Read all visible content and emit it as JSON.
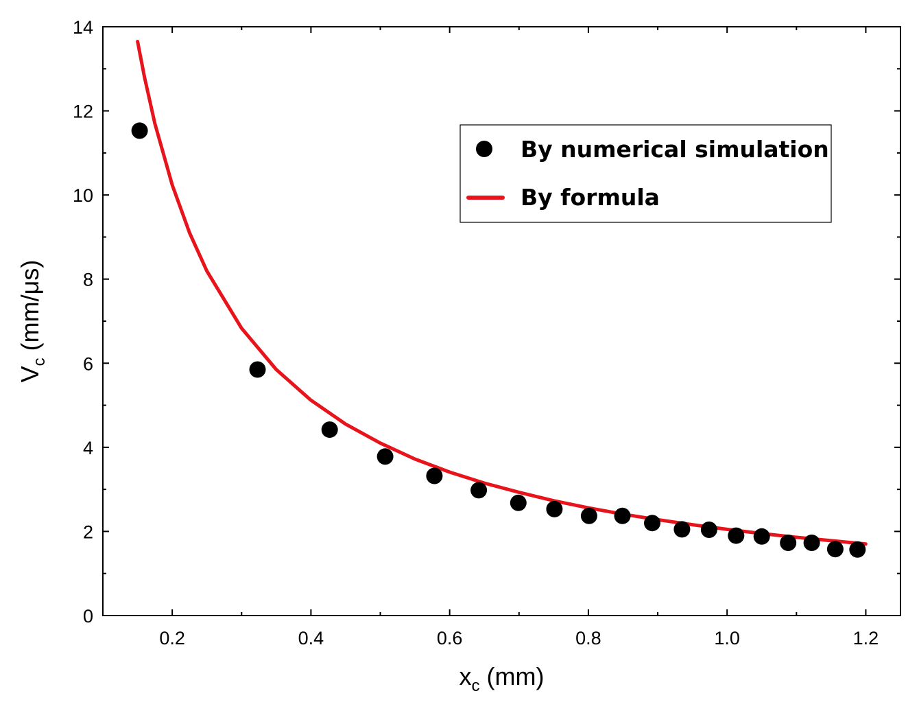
{
  "chart_data": {
    "type": "scatter",
    "xlabel": {
      "main": "x",
      "sub": "c",
      "unit": " (mm)"
    },
    "ylabel": {
      "main": "V",
      "sub": "c",
      "unit": " (mm/μs)"
    },
    "xlim": [
      0.1,
      1.25
    ],
    "ylim": [
      0,
      14
    ],
    "xticks": [
      0.2,
      0.4,
      0.6,
      0.8,
      1.0,
      1.2
    ],
    "xtick_labels": [
      "0.2",
      "0.4",
      "0.6",
      "0.8",
      "1.0",
      "1.2"
    ],
    "yticks": [
      0,
      2,
      4,
      6,
      8,
      10,
      12,
      14
    ],
    "ytick_labels": [
      "0",
      "2",
      "4",
      "6",
      "8",
      "10",
      "12",
      "14"
    ],
    "grid": false,
    "legend_position": "top-right",
    "series": [
      {
        "name": "By numerical simulation",
        "kind": "scatter",
        "color": "#000000",
        "points": [
          [
            0.153,
            11.53
          ],
          [
            0.323,
            5.85
          ],
          [
            0.427,
            4.42
          ],
          [
            0.507,
            3.78
          ],
          [
            0.578,
            3.32
          ],
          [
            0.642,
            2.98
          ],
          [
            0.699,
            2.68
          ],
          [
            0.751,
            2.53
          ],
          [
            0.801,
            2.37
          ],
          [
            0.849,
            2.37
          ],
          [
            0.892,
            2.2
          ],
          [
            0.935,
            2.05
          ],
          [
            0.974,
            2.04
          ],
          [
            1.013,
            1.9
          ],
          [
            1.05,
            1.88
          ],
          [
            1.088,
            1.73
          ],
          [
            1.122,
            1.73
          ],
          [
            1.156,
            1.58
          ],
          [
            1.188,
            1.57
          ]
        ]
      },
      {
        "name": "By formula",
        "kind": "line",
        "color": "#e8141c",
        "points": [
          [
            0.15,
            13.65
          ],
          [
            0.16,
            12.8
          ],
          [
            0.175,
            11.7
          ],
          [
            0.2,
            10.24
          ],
          [
            0.225,
            9.1
          ],
          [
            0.25,
            8.19
          ],
          [
            0.3,
            6.83
          ],
          [
            0.35,
            5.85
          ],
          [
            0.4,
            5.12
          ],
          [
            0.45,
            4.55
          ],
          [
            0.5,
            4.1
          ],
          [
            0.55,
            3.72
          ],
          [
            0.6,
            3.41
          ],
          [
            0.65,
            3.15
          ],
          [
            0.7,
            2.93
          ],
          [
            0.75,
            2.73
          ],
          [
            0.8,
            2.56
          ],
          [
            0.85,
            2.41
          ],
          [
            0.9,
            2.28
          ],
          [
            0.95,
            2.16
          ],
          [
            1.0,
            2.05
          ],
          [
            1.05,
            1.95
          ],
          [
            1.1,
            1.86
          ],
          [
            1.15,
            1.78
          ],
          [
            1.2,
            1.7
          ]
        ]
      }
    ]
  }
}
